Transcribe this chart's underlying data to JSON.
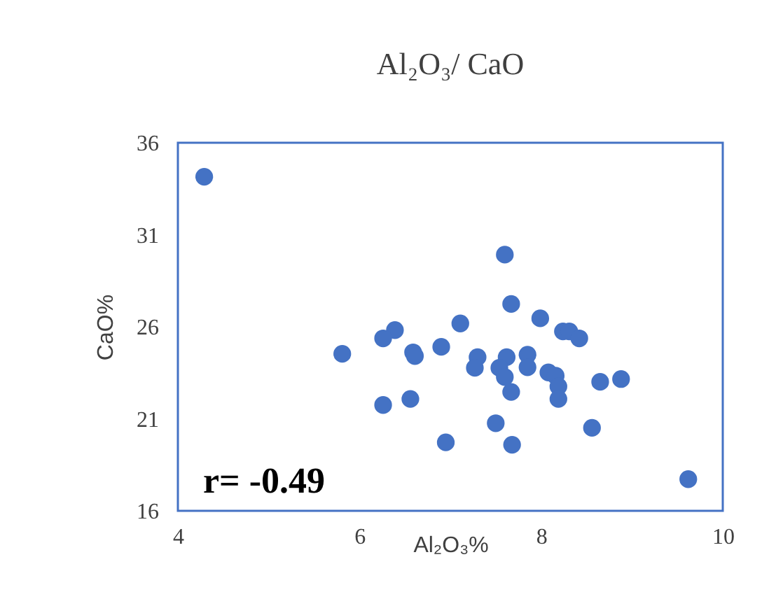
{
  "chart_data": {
    "type": "scatter",
    "title": "Al₂O₃/ CaO",
    "xlabel": "Al₂O₃%",
    "ylabel": "CaO%",
    "annotations": [
      "r= -0.49"
    ],
    "xlim": [
      4,
      10
    ],
    "xticks": [
      4,
      6,
      8,
      10
    ],
    "ylim": [
      16,
      36
    ],
    "yticks": [
      16,
      21,
      26,
      31,
      36
    ],
    "grid": false,
    "legend": false,
    "marker": "circle",
    "series": [
      {
        "color": "#4472c4",
        "x": [
          4.29,
          7.6,
          7.67,
          7.99,
          7.11,
          6.39,
          6.26,
          8.24,
          8.31,
          8.42,
          5.81,
          6.59,
          6.61,
          6.9,
          7.3,
          7.27,
          7.62,
          7.54,
          7.6,
          7.85,
          7.85,
          8.08,
          8.16,
          8.19,
          8.19,
          7.67,
          8.65,
          8.88,
          6.26,
          6.56,
          7.5,
          8.56,
          6.95,
          7.68,
          9.62
        ],
        "values": [
          34.15,
          29.92,
          27.24,
          26.46,
          26.18,
          25.82,
          25.37,
          25.75,
          25.75,
          25.37,
          24.53,
          24.61,
          24.41,
          24.91,
          24.35,
          23.77,
          24.35,
          23.77,
          23.27,
          24.48,
          23.8,
          23.52,
          23.34,
          22.76,
          22.08,
          22.46,
          23.01,
          23.16,
          21.75,
          22.08,
          20.76,
          20.51,
          19.72,
          19.59,
          17.72
        ]
      }
    ]
  }
}
